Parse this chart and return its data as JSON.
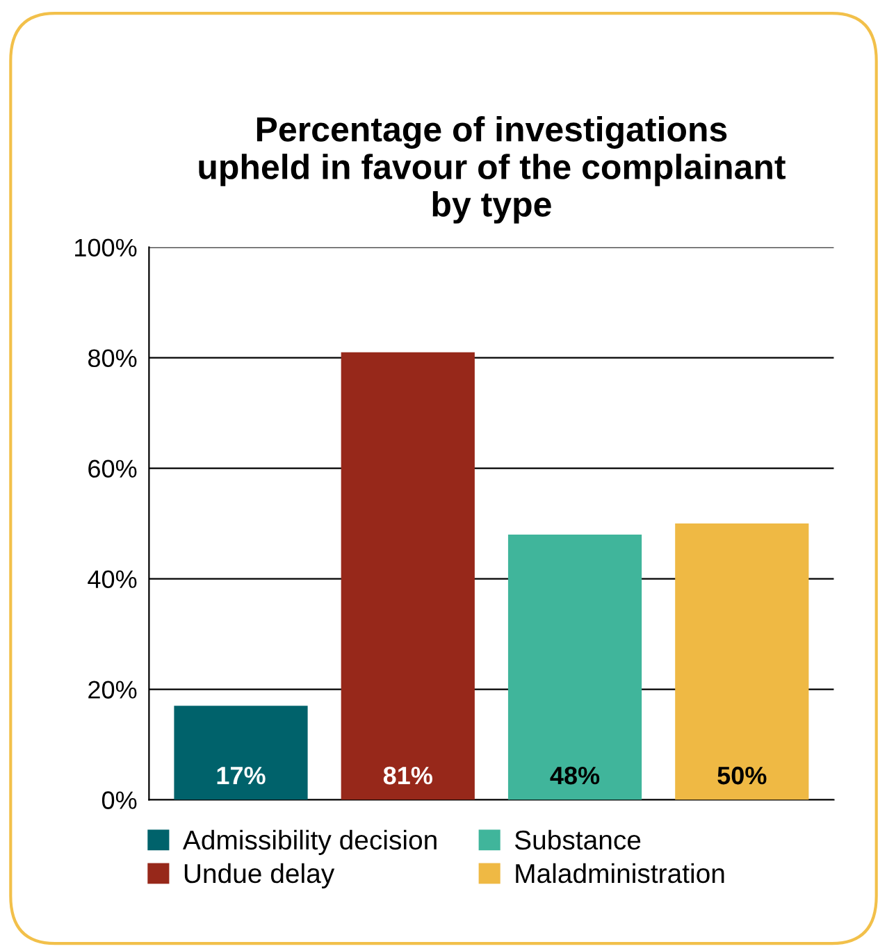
{
  "chart_data": {
    "type": "bar",
    "title": "Percentage of investigations\nupheld in favour of the complainant\nby type",
    "categories": [
      null,
      null,
      null,
      null
    ],
    "series": [
      {
        "name": "Admissibility decision",
        "color": "#00626b",
        "values": [
          17,
          null,
          null,
          null
        ],
        "value_labels": [
          "17%",
          null,
          null,
          null
        ]
      },
      {
        "name": "Undue delay",
        "color": "#97281a",
        "values": [
          null,
          81,
          null,
          null
        ],
        "value_labels": [
          null,
          "81%",
          null,
          null
        ]
      },
      {
        "name": "Substance",
        "color": "#40b59b",
        "values": [
          null,
          null,
          48,
          null
        ],
        "value_labels": [
          null,
          null,
          "48%",
          null
        ]
      },
      {
        "name": "Maladministration",
        "color": "#efb944",
        "values": [
          null,
          null,
          null,
          50
        ],
        "value_labels": [
          null,
          null,
          null,
          "50%"
        ]
      }
    ],
    "ylim": [
      0,
      100
    ],
    "yticks": [
      {
        "value": 0,
        "label": "0%"
      },
      {
        "value": 20,
        "label": "20%"
      },
      {
        "value": 40,
        "label": "40%"
      },
      {
        "value": 60,
        "label": "60%"
      },
      {
        "value": 80,
        "label": "80%"
      },
      {
        "value": 100,
        "label": "100%"
      }
    ],
    "grid": "y",
    "legend": "bottom"
  }
}
